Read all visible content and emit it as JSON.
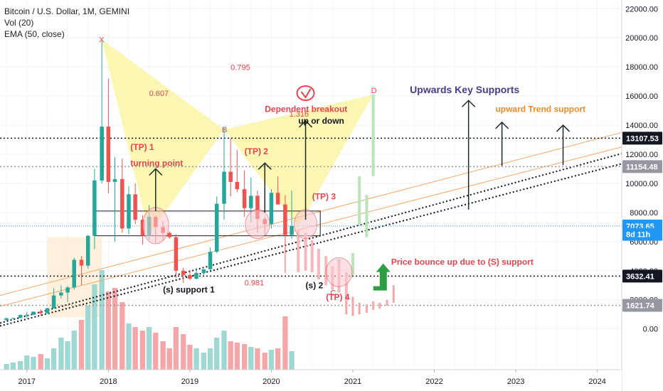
{
  "chart_data": {
    "type": "candlestick",
    "legend_lines": [
      "Bitcoin / U.S. Dollar, 1M, GEMINI",
      "Vol (20)",
      "EMA (50, close)"
    ],
    "y_axis": {
      "ticks": [
        0,
        2000,
        4000,
        6000,
        8000,
        10000,
        12000,
        14000,
        16000,
        18000,
        20000,
        22000
      ],
      "tick_labels": [
        "0.00",
        "2000.00",
        "4000.00",
        "6000.00",
        "8000.00",
        "10000.00",
        "12000.00",
        "14000.00",
        "16000.00",
        "18000.00",
        "20000.00",
        "22000.00"
      ],
      "range": [
        -2800,
        22600
      ]
    },
    "x_axis": {
      "labels": [
        "2017",
        "2018",
        "2019",
        "2020",
        "2021",
        "2022",
        "2023",
        "2024"
      ],
      "values": [
        2017,
        2018,
        2019,
        2020,
        2021,
        2022,
        2023,
        2024
      ],
      "range": [
        2016.67,
        2024.3
      ]
    },
    "price_markers": [
      {
        "value": 13107.53,
        "label": "13107.53",
        "style": "dark"
      },
      {
        "value": 11154.48,
        "label": "11154.48",
        "style": "gray"
      },
      {
        "value": 7073.65,
        "label": "7073.65",
        "style": "blue"
      },
      {
        "value": 6500,
        "label": "8d 11h",
        "style": "blue"
      },
      {
        "value": 3632.41,
        "label": "3632.41",
        "style": "dark"
      },
      {
        "value": 1621.74,
        "label": "1621.74",
        "style": "gray"
      }
    ],
    "hlines": [
      {
        "value": 13107.53,
        "color": "#131722",
        "dash": "2,3"
      },
      {
        "value": 11154.48,
        "color": "#9598a1",
        "dash": "2,3"
      },
      {
        "value": 7073.65,
        "color": "#2196f3",
        "dash": "1,2"
      },
      {
        "value": 3632.41,
        "color": "#131722",
        "dash": "2,3"
      },
      {
        "value": 1621.74,
        "color": "#9598a1",
        "dash": "2,3"
      }
    ],
    "candles": [
      {
        "t": 2016.75,
        "o": 600,
        "h": 780,
        "l": 590,
        "c": 730
      },
      {
        "t": 2016.83,
        "o": 730,
        "h": 760,
        "l": 700,
        "c": 745
      },
      {
        "t": 2016.92,
        "o": 745,
        "h": 980,
        "l": 740,
        "c": 965
      },
      {
        "t": 2017.0,
        "o": 965,
        "h": 1150,
        "l": 750,
        "c": 970
      },
      {
        "t": 2017.08,
        "o": 970,
        "h": 1200,
        "l": 940,
        "c": 1190
      },
      {
        "t": 2017.17,
        "o": 1190,
        "h": 1350,
        "l": 890,
        "c": 1080
      },
      {
        "t": 2017.25,
        "o": 1080,
        "h": 1450,
        "l": 1070,
        "c": 1420
      },
      {
        "t": 2017.33,
        "o": 1420,
        "h": 2800,
        "l": 1400,
        "c": 2300
      },
      {
        "t": 2017.42,
        "o": 2300,
        "h": 3000,
        "l": 2100,
        "c": 2500
      },
      {
        "t": 2017.5,
        "o": 2500,
        "h": 2950,
        "l": 1850,
        "c": 2850
      },
      {
        "t": 2017.58,
        "o": 2850,
        "h": 4900,
        "l": 2700,
        "c": 4750
      },
      {
        "t": 2017.67,
        "o": 4750,
        "h": 5000,
        "l": 3000,
        "c": 4350
      },
      {
        "t": 2017.75,
        "o": 4350,
        "h": 6450,
        "l": 4150,
        "c": 6400
      },
      {
        "t": 2017.83,
        "o": 6400,
        "h": 11000,
        "l": 5500,
        "c": 10200
      },
      {
        "t": 2017.92,
        "o": 10200,
        "h": 19800,
        "l": 10000,
        "c": 13900
      },
      {
        "t": 2018.0,
        "o": 13900,
        "h": 17200,
        "l": 9300,
        "c": 10100
      },
      {
        "t": 2018.08,
        "o": 10100,
        "h": 11800,
        "l": 6000,
        "c": 10300
      },
      {
        "t": 2018.17,
        "o": 10300,
        "h": 11700,
        "l": 6600,
        "c": 6900
      },
      {
        "t": 2018.25,
        "o": 6900,
        "h": 9800,
        "l": 6500,
        "c": 9250
      },
      {
        "t": 2018.33,
        "o": 9250,
        "h": 10000,
        "l": 7200,
        "c": 7500
      },
      {
        "t": 2018.42,
        "o": 7500,
        "h": 7800,
        "l": 5800,
        "c": 6400
      },
      {
        "t": 2018.5,
        "o": 6400,
        "h": 8500,
        "l": 6100,
        "c": 7700
      },
      {
        "t": 2018.58,
        "o": 7700,
        "h": 7800,
        "l": 5900,
        "c": 7000
      },
      {
        "t": 2018.67,
        "o": 7000,
        "h": 7400,
        "l": 6100,
        "c": 6600
      },
      {
        "t": 2018.75,
        "o": 6600,
        "h": 6700,
        "l": 6200,
        "c": 6300
      },
      {
        "t": 2018.83,
        "o": 6300,
        "h": 6500,
        "l": 3500,
        "c": 4000
      },
      {
        "t": 2018.92,
        "o": 4000,
        "h": 4200,
        "l": 3150,
        "c": 3700
      },
      {
        "t": 2019.0,
        "o": 3700,
        "h": 4050,
        "l": 3350,
        "c": 3450
      },
      {
        "t": 2019.08,
        "o": 3450,
        "h": 4200,
        "l": 3400,
        "c": 3850
      },
      {
        "t": 2019.17,
        "o": 3850,
        "h": 4100,
        "l": 3700,
        "c": 4100
      },
      {
        "t": 2019.25,
        "o": 4100,
        "h": 5600,
        "l": 4050,
        "c": 5300
      },
      {
        "t": 2019.33,
        "o": 5300,
        "h": 9100,
        "l": 5200,
        "c": 8600
      },
      {
        "t": 2019.42,
        "o": 8600,
        "h": 13800,
        "l": 7500,
        "c": 10800
      },
      {
        "t": 2019.5,
        "o": 10800,
        "h": 13100,
        "l": 9100,
        "c": 10100
      },
      {
        "t": 2019.58,
        "o": 10100,
        "h": 12300,
        "l": 9400,
        "c": 9600
      },
      {
        "t": 2019.67,
        "o": 9600,
        "h": 10900,
        "l": 7700,
        "c": 8300
      },
      {
        "t": 2019.75,
        "o": 8300,
        "h": 10400,
        "l": 7300,
        "c": 9150
      },
      {
        "t": 2019.83,
        "o": 9150,
        "h": 9500,
        "l": 6600,
        "c": 7550
      },
      {
        "t": 2019.92,
        "o": 7550,
        "h": 7700,
        "l": 6400,
        "c": 7200
      },
      {
        "t": 2020.0,
        "o": 7200,
        "h": 9600,
        "l": 6900,
        "c": 9350
      },
      {
        "t": 2020.08,
        "o": 9350,
        "h": 10500,
        "l": 8600,
        "c": 8550
      },
      {
        "t": 2020.17,
        "o": 8550,
        "h": 9200,
        "l": 3850,
        "c": 6450
      },
      {
        "t": 2020.25,
        "o": 6450,
        "h": 9500,
        "l": 6200,
        "c": 7073
      }
    ],
    "projection_bars": [
      {
        "t": 2020.33,
        "top": 6800,
        "bottom": 3900,
        "color": "#f7b7bc"
      },
      {
        "t": 2020.42,
        "top": 6600,
        "bottom": 4000,
        "color": "#f7b7bc"
      },
      {
        "t": 2020.5,
        "top": 6100,
        "bottom": 3900,
        "color": "#f7b7bc"
      },
      {
        "t": 2020.58,
        "top": 5500,
        "bottom": 3400,
        "color": "#f7b7bc"
      },
      {
        "t": 2020.67,
        "top": 5000,
        "bottom": 3000,
        "color": "#f7b7bc"
      },
      {
        "t": 2020.75,
        "top": 4300,
        "bottom": 2700,
        "color": "#f7b7bc"
      },
      {
        "t": 2020.83,
        "top": 4800,
        "bottom": 2500,
        "color": "#f7b7bc"
      },
      {
        "t": 2020.92,
        "top": 3900,
        "bottom": 2100,
        "color": "#f7b7bc"
      },
      {
        "t": 2021.0,
        "top": 5200,
        "bottom": 3700,
        "color": "#b8e6b8"
      },
      {
        "t": 2021.08,
        "top": 10500,
        "bottom": 7100,
        "color": "#b8e6b8"
      },
      {
        "t": 2021.17,
        "top": 9200,
        "bottom": 6300,
        "color": "#b8e6b8"
      },
      {
        "t": 2021.25,
        "top": 16100,
        "bottom": 10500,
        "color": "#b8e6b8"
      }
    ],
    "ghost_lows": [
      {
        "t": 2020.92,
        "top": 2100,
        "bottom": 1000
      },
      {
        "t": 2021.0,
        "top": 2200,
        "bottom": 900
      },
      {
        "t": 2021.08,
        "top": 1800,
        "bottom": 1000
      },
      {
        "t": 2021.17,
        "top": 1700,
        "bottom": 1100
      },
      {
        "t": 2021.25,
        "top": 1900,
        "bottom": 1300
      },
      {
        "t": 2021.33,
        "top": 1800,
        "bottom": 1400
      },
      {
        "t": 2021.42,
        "top": 2000,
        "bottom": 1600
      },
      {
        "t": 2021.5,
        "top": 3000,
        "bottom": 1800
      }
    ],
    "volume_bars": [
      {
        "t": 2016.75,
        "h": 8,
        "up": true
      },
      {
        "t": 2016.83,
        "h": 10,
        "up": true
      },
      {
        "t": 2016.92,
        "h": 12,
        "up": true
      },
      {
        "t": 2017.0,
        "h": 20,
        "up": true
      },
      {
        "t": 2017.08,
        "h": 18,
        "up": true
      },
      {
        "t": 2017.17,
        "h": 22,
        "up": false
      },
      {
        "t": 2017.25,
        "h": 16,
        "up": true
      },
      {
        "t": 2017.33,
        "h": 30,
        "up": true
      },
      {
        "t": 2017.42,
        "h": 45,
        "up": true
      },
      {
        "t": 2017.5,
        "h": 40,
        "up": true
      },
      {
        "t": 2017.58,
        "h": 55,
        "up": true
      },
      {
        "t": 2017.67,
        "h": 70,
        "up": false
      },
      {
        "t": 2017.75,
        "h": 90,
        "up": true
      },
      {
        "t": 2017.83,
        "h": 120,
        "up": true
      },
      {
        "t": 2017.92,
        "h": 140,
        "up": true
      },
      {
        "t": 2018.0,
        "h": 110,
        "up": false
      },
      {
        "t": 2018.08,
        "h": 115,
        "up": false
      },
      {
        "t": 2018.17,
        "h": 95,
        "up": false
      },
      {
        "t": 2018.25,
        "h": 65,
        "up": true
      },
      {
        "t": 2018.33,
        "h": 60,
        "up": false
      },
      {
        "t": 2018.42,
        "h": 55,
        "up": false
      },
      {
        "t": 2018.5,
        "h": 60,
        "up": true
      },
      {
        "t": 2018.58,
        "h": 52,
        "up": false
      },
      {
        "t": 2018.67,
        "h": 40,
        "up": false
      },
      {
        "t": 2018.75,
        "h": 30,
        "up": false
      },
      {
        "t": 2018.83,
        "h": 60,
        "up": false
      },
      {
        "t": 2018.92,
        "h": 50,
        "up": false
      },
      {
        "t": 2019.0,
        "h": 35,
        "up": false
      },
      {
        "t": 2019.08,
        "h": 30,
        "up": true
      },
      {
        "t": 2019.17,
        "h": 24,
        "up": true
      },
      {
        "t": 2019.25,
        "h": 30,
        "up": true
      },
      {
        "t": 2019.33,
        "h": 45,
        "up": true
      },
      {
        "t": 2019.42,
        "h": 55,
        "up": true
      },
      {
        "t": 2019.5,
        "h": 40,
        "up": false
      },
      {
        "t": 2019.58,
        "h": 38,
        "up": false
      },
      {
        "t": 2019.67,
        "h": 36,
        "up": false
      },
      {
        "t": 2019.75,
        "h": 32,
        "up": true
      },
      {
        "t": 2019.83,
        "h": 30,
        "up": false
      },
      {
        "t": 2019.92,
        "h": 24,
        "up": false
      },
      {
        "t": 2020.0,
        "h": 28,
        "up": true
      },
      {
        "t": 2020.08,
        "h": 30,
        "up": false
      },
      {
        "t": 2020.17,
        "h": 75,
        "up": false
      },
      {
        "t": 2020.25,
        "h": 26,
        "up": true
      }
    ],
    "ema_points": [
      [
        2016.67,
        1800
      ],
      [
        2017.5,
        3000
      ],
      [
        2018.0,
        4300
      ],
      [
        2018.5,
        4600
      ],
      [
        2019.0,
        4200
      ],
      [
        2019.5,
        5000
      ],
      [
        2020.0,
        5600
      ],
      [
        2020.25,
        5700
      ]
    ],
    "trendlines": [
      {
        "x1": 2016.67,
        "y1": 400,
        "x2": 2024.3,
        "y2": 12050,
        "color": "#131722",
        "dash": "2,3"
      },
      {
        "x1": 2016.67,
        "y1": 200,
        "x2": 2024.3,
        "y2": 11350,
        "color": "#131722",
        "dash": "2,3"
      },
      {
        "x1": 2016.67,
        "y1": 2300,
        "x2": 2024.3,
        "y2": 13500,
        "color": "#f2a96a",
        "dash": ""
      },
      {
        "x1": 2016.67,
        "y1": 1550,
        "x2": 2024.3,
        "y2": 12500,
        "color": "#f2a96a",
        "dash": ""
      }
    ],
    "harmonic_pattern": {
      "points": [
        [
          2017.92,
          19900
        ],
        [
          2018.5,
          6500
        ],
        [
          2019.42,
          13700
        ],
        [
          2020.33,
          7000
        ],
        [
          2021.25,
          16100
        ]
      ],
      "labels": {
        "X": "X",
        "B": "B",
        "C": "C",
        "D": "D"
      },
      "ratios": {
        "xab": "0.607",
        "xad": "0.795",
        "bcd": "1.316",
        "abc": "0.981"
      }
    },
    "rectangle": {
      "t1": 2017.83,
      "t2": 2020.6,
      "v1": 8100,
      "v2": 6400
    },
    "ellipses": [
      {
        "t": 2018.58,
        "v": 7100,
        "rt": 0.16,
        "rv": 1250
      },
      {
        "t": 2019.83,
        "v": 7200,
        "rt": 0.15,
        "rv": 1000
      },
      {
        "t": 2020.42,
        "v": 7200,
        "rt": 0.14,
        "rv": 1000
      },
      {
        "t": 2020.83,
        "v": 3900,
        "rt": 0.16,
        "rv": 1000
      }
    ],
    "arrows": [
      {
        "t": 2018.58,
        "from": 8100,
        "to": 11000
      },
      {
        "t": 2019.92,
        "from": 8000,
        "to": 11400
      },
      {
        "t": 2020.42,
        "from": 7500,
        "to": 14300
      },
      {
        "t": 2022.42,
        "from": 8200,
        "to": 15700
      },
      {
        "t": 2022.83,
        "from": 11200,
        "to": 14200
      },
      {
        "t": 2023.58,
        "from": 11250,
        "to": 14000
      }
    ],
    "green_arrow": {
      "t": 2021.33,
      "v": 4300
    },
    "annotations": [
      {
        "text": "(TP) 1",
        "t": 2018.27,
        "v": 12300,
        "color": "#e8434f",
        "size": 12
      },
      {
        "text": "turning point",
        "t": 2018.27,
        "v": 11200,
        "color": "#e8434f",
        "size": 12
      },
      {
        "text": "(TP) 2",
        "t": 2019.67,
        "v": 12000,
        "color": "#e8434f",
        "size": 12
      },
      {
        "text": "(TP) 3",
        "t": 2020.5,
        "v": 8900,
        "color": "#e8434f",
        "size": 12
      },
      {
        "text": "(TP) 4",
        "t": 2020.67,
        "v": 1980,
        "color": "#e8434f",
        "size": 12
      },
      {
        "text": "Dependent breakout",
        "t": 2019.92,
        "v": 14900,
        "color": "#e8434f",
        "size": 12
      },
      {
        "text": "up or down",
        "t": 2020.33,
        "v": 14100,
        "color": "#131722",
        "size": 12
      },
      {
        "text": "Upwards Key Supports",
        "t": 2021.7,
        "v": 16200,
        "color": "#4a3a8a",
        "size": 14
      },
      {
        "text": "upward Trend support",
        "t": 2022.75,
        "v": 14900,
        "color": "#f08a24",
        "size": 12
      },
      {
        "text": "Price bounce up due to (S) support",
        "t": 2021.47,
        "v": 4400,
        "color": "#e8434f",
        "size": 12
      },
      {
        "text": "(s) support 1",
        "t": 2018.67,
        "v": 2500,
        "color": "#131722",
        "size": 12
      },
      {
        "text": "(s) 2",
        "t": 2020.42,
        "v": 2800,
        "color": "#131722",
        "size": 12
      }
    ]
  },
  "icon": {
    "name": "tradingview-idea-eye-icon",
    "color": "#e8434f"
  },
  "colors": {
    "up": "#26a69a",
    "down": "#ef5350",
    "vol_up": "#9fd8d2",
    "vol_down": "#f5a6a8",
    "pattern_fill": "#fbf5a6"
  }
}
